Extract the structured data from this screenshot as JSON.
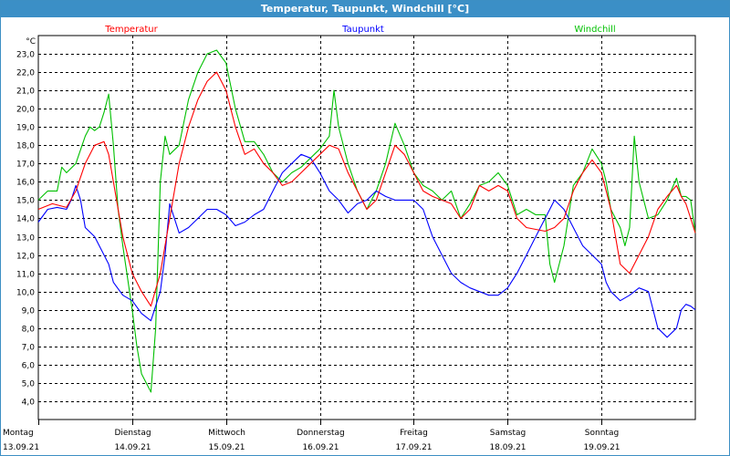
{
  "window": {
    "title": "Temperatur, Taupunkt, Windchill [°C]"
  },
  "chart_data": {
    "type": "line",
    "title": "Temperatur, Taupunkt, Windchill [°C]",
    "ylabel": "°C",
    "ylim": [
      3.0,
      24.0
    ],
    "yticks": [
      "4,0",
      "5,0",
      "6,0",
      "7,0",
      "8,0",
      "9,0",
      "10,0",
      "11,0",
      "12,0",
      "13,0",
      "14,0",
      "15,0",
      "16,0",
      "17,0",
      "18,0",
      "19,0",
      "20,0",
      "21,0",
      "22,0",
      "23,0"
    ],
    "xlim": [
      0,
      7
    ],
    "grid": true,
    "legend_position": "top",
    "days": [
      {
        "x": 0,
        "name": "Montag",
        "date": "13.09.21"
      },
      {
        "x": 1,
        "name": "Dienstag",
        "date": "14.09.21"
      },
      {
        "x": 2,
        "name": "Mittwoch",
        "date": "15.09.21"
      },
      {
        "x": 3,
        "name": "Donnerstag",
        "date": "16.09.21"
      },
      {
        "x": 4,
        "name": "Freitag",
        "date": "17.09.21"
      },
      {
        "x": 5,
        "name": "Samstag",
        "date": "18.09.21"
      },
      {
        "x": 6,
        "name": "Sonntag",
        "date": "19.09.21"
      }
    ],
    "series": [
      {
        "name": "Temperatur",
        "color": "#ff0000",
        "points": [
          [
            0,
            14.5
          ],
          [
            0.15,
            14.8
          ],
          [
            0.3,
            14.6
          ],
          [
            0.4,
            15.5
          ],
          [
            0.5,
            17.0
          ],
          [
            0.6,
            18.0
          ],
          [
            0.7,
            18.2
          ],
          [
            0.75,
            17.5
          ],
          [
            0.8,
            16.0
          ],
          [
            0.9,
            13.0
          ],
          [
            1.0,
            11.0
          ],
          [
            1.1,
            10.0
          ],
          [
            1.2,
            9.2
          ],
          [
            1.3,
            11.0
          ],
          [
            1.4,
            14.0
          ],
          [
            1.5,
            17.0
          ],
          [
            1.6,
            19.0
          ],
          [
            1.7,
            20.5
          ],
          [
            1.8,
            21.5
          ],
          [
            1.9,
            22.0
          ],
          [
            2.0,
            21.0
          ],
          [
            2.1,
            19.0
          ],
          [
            2.2,
            17.5
          ],
          [
            2.3,
            17.8
          ],
          [
            2.4,
            17.0
          ],
          [
            2.5,
            16.5
          ],
          [
            2.6,
            15.8
          ],
          [
            2.7,
            16.0
          ],
          [
            2.8,
            16.5
          ],
          [
            2.9,
            17.0
          ],
          [
            3.0,
            17.5
          ],
          [
            3.1,
            18.0
          ],
          [
            3.2,
            17.8
          ],
          [
            3.3,
            16.5
          ],
          [
            3.4,
            15.5
          ],
          [
            3.5,
            14.5
          ],
          [
            3.6,
            15.0
          ],
          [
            3.7,
            16.5
          ],
          [
            3.8,
            18.0
          ],
          [
            3.9,
            17.5
          ],
          [
            4.0,
            16.5
          ],
          [
            4.1,
            15.5
          ],
          [
            4.2,
            15.2
          ],
          [
            4.3,
            15.0
          ],
          [
            4.4,
            14.8
          ],
          [
            4.5,
            14.0
          ],
          [
            4.6,
            14.5
          ],
          [
            4.7,
            15.8
          ],
          [
            4.8,
            15.5
          ],
          [
            4.9,
            15.8
          ],
          [
            5.0,
            15.5
          ],
          [
            5.1,
            14.0
          ],
          [
            5.2,
            13.5
          ],
          [
            5.3,
            13.4
          ],
          [
            5.4,
            13.3
          ],
          [
            5.5,
            13.5
          ],
          [
            5.6,
            14.0
          ],
          [
            5.7,
            15.5
          ],
          [
            5.8,
            16.5
          ],
          [
            5.9,
            17.2
          ],
          [
            6.0,
            16.5
          ],
          [
            6.05,
            15.5
          ],
          [
            6.1,
            14.5
          ],
          [
            6.2,
            11.5
          ],
          [
            6.3,
            11.0
          ],
          [
            6.4,
            12.0
          ],
          [
            6.5,
            13.0
          ],
          [
            6.6,
            14.5
          ],
          [
            6.7,
            15.2
          ],
          [
            6.8,
            15.8
          ],
          [
            6.85,
            15.2
          ],
          [
            6.9,
            14.8
          ],
          [
            6.95,
            14.0
          ],
          [
            7.0,
            13.2
          ]
        ]
      },
      {
        "name": "Taupunkt",
        "color": "#0000ff",
        "points": [
          [
            0,
            13.8
          ],
          [
            0.1,
            14.5
          ],
          [
            0.2,
            14.6
          ],
          [
            0.3,
            14.5
          ],
          [
            0.35,
            15.0
          ],
          [
            0.4,
            15.8
          ],
          [
            0.45,
            15.0
          ],
          [
            0.5,
            13.5
          ],
          [
            0.6,
            13.0
          ],
          [
            0.7,
            12.0
          ],
          [
            0.75,
            11.5
          ],
          [
            0.8,
            10.5
          ],
          [
            0.9,
            9.8
          ],
          [
            1.0,
            9.5
          ],
          [
            1.1,
            8.8
          ],
          [
            1.2,
            8.4
          ],
          [
            1.3,
            10.0
          ],
          [
            1.35,
            12.0
          ],
          [
            1.4,
            14.8
          ],
          [
            1.5,
            13.2
          ],
          [
            1.6,
            13.5
          ],
          [
            1.7,
            14.0
          ],
          [
            1.8,
            14.5
          ],
          [
            1.9,
            14.5
          ],
          [
            2.0,
            14.2
          ],
          [
            2.1,
            13.6
          ],
          [
            2.2,
            13.8
          ],
          [
            2.3,
            14.2
          ],
          [
            2.4,
            14.5
          ],
          [
            2.5,
            15.5
          ],
          [
            2.6,
            16.5
          ],
          [
            2.7,
            17.0
          ],
          [
            2.8,
            17.5
          ],
          [
            2.9,
            17.3
          ],
          [
            3.0,
            16.5
          ],
          [
            3.1,
            15.5
          ],
          [
            3.2,
            15.0
          ],
          [
            3.3,
            14.3
          ],
          [
            3.4,
            14.8
          ],
          [
            3.5,
            15.0
          ],
          [
            3.6,
            15.5
          ],
          [
            3.7,
            15.2
          ],
          [
            3.8,
            15.0
          ],
          [
            3.9,
            15.0
          ],
          [
            4.0,
            15.0
          ],
          [
            4.1,
            14.5
          ],
          [
            4.2,
            13.0
          ],
          [
            4.3,
            12.0
          ],
          [
            4.4,
            11.0
          ],
          [
            4.5,
            10.5
          ],
          [
            4.6,
            10.2
          ],
          [
            4.7,
            10.0
          ],
          [
            4.8,
            9.8
          ],
          [
            4.9,
            9.8
          ],
          [
            5.0,
            10.2
          ],
          [
            5.1,
            11.0
          ],
          [
            5.2,
            12.0
          ],
          [
            5.3,
            13.0
          ],
          [
            5.4,
            14.0
          ],
          [
            5.5,
            15.0
          ],
          [
            5.6,
            14.5
          ],
          [
            5.7,
            13.5
          ],
          [
            5.8,
            12.5
          ],
          [
            5.9,
            12.0
          ],
          [
            6.0,
            11.5
          ],
          [
            6.05,
            10.5
          ],
          [
            6.1,
            10.0
          ],
          [
            6.2,
            9.5
          ],
          [
            6.3,
            9.8
          ],
          [
            6.4,
            10.2
          ],
          [
            6.5,
            10.0
          ],
          [
            6.6,
            8.0
          ],
          [
            6.7,
            7.5
          ],
          [
            6.8,
            8.0
          ],
          [
            6.85,
            9.0
          ],
          [
            6.9,
            9.3
          ],
          [
            6.95,
            9.2
          ],
          [
            7.0,
            9.0
          ]
        ]
      },
      {
        "name": "Windchill",
        "color": "#00c000",
        "points": [
          [
            0,
            15.0
          ],
          [
            0.1,
            15.5
          ],
          [
            0.2,
            15.5
          ],
          [
            0.25,
            16.8
          ],
          [
            0.3,
            16.5
          ],
          [
            0.4,
            17.0
          ],
          [
            0.5,
            18.5
          ],
          [
            0.55,
            19.0
          ],
          [
            0.6,
            18.8
          ],
          [
            0.65,
            19.0
          ],
          [
            0.7,
            19.8
          ],
          [
            0.75,
            20.8
          ],
          [
            0.8,
            18.0
          ],
          [
            0.85,
            14.5
          ],
          [
            0.9,
            12.5
          ],
          [
            1.0,
            9.0
          ],
          [
            1.05,
            7.0
          ],
          [
            1.1,
            5.5
          ],
          [
            1.2,
            4.5
          ],
          [
            1.25,
            8.0
          ],
          [
            1.3,
            16.0
          ],
          [
            1.35,
            18.5
          ],
          [
            1.4,
            17.5
          ],
          [
            1.5,
            18.0
          ],
          [
            1.6,
            20.5
          ],
          [
            1.7,
            22.0
          ],
          [
            1.8,
            23.0
          ],
          [
            1.9,
            23.2
          ],
          [
            2.0,
            22.5
          ],
          [
            2.1,
            20.0
          ],
          [
            2.2,
            18.2
          ],
          [
            2.3,
            18.2
          ],
          [
            2.4,
            17.5
          ],
          [
            2.5,
            16.5
          ],
          [
            2.6,
            16.0
          ],
          [
            2.7,
            16.5
          ],
          [
            2.8,
            16.8
          ],
          [
            2.9,
            17.3
          ],
          [
            3.0,
            17.8
          ],
          [
            3.1,
            18.5
          ],
          [
            3.15,
            21.0
          ],
          [
            3.2,
            19.0
          ],
          [
            3.3,
            17.0
          ],
          [
            3.4,
            15.5
          ],
          [
            3.5,
            14.5
          ],
          [
            3.6,
            15.5
          ],
          [
            3.7,
            17.0
          ],
          [
            3.8,
            19.2
          ],
          [
            3.9,
            18.0
          ],
          [
            4.0,
            16.5
          ],
          [
            4.1,
            15.8
          ],
          [
            4.2,
            15.5
          ],
          [
            4.3,
            15.0
          ],
          [
            4.4,
            15.5
          ],
          [
            4.5,
            14.0
          ],
          [
            4.6,
            14.8
          ],
          [
            4.7,
            15.8
          ],
          [
            4.8,
            16.0
          ],
          [
            4.9,
            16.5
          ],
          [
            5.0,
            15.8
          ],
          [
            5.1,
            14.2
          ],
          [
            5.2,
            14.5
          ],
          [
            5.3,
            14.2
          ],
          [
            5.4,
            14.2
          ],
          [
            5.45,
            11.5
          ],
          [
            5.5,
            10.5
          ],
          [
            5.6,
            12.5
          ],
          [
            5.7,
            15.8
          ],
          [
            5.8,
            16.5
          ],
          [
            5.9,
            17.8
          ],
          [
            6.0,
            17.0
          ],
          [
            6.05,
            16.0
          ],
          [
            6.1,
            14.5
          ],
          [
            6.2,
            13.5
          ],
          [
            6.25,
            12.5
          ],
          [
            6.3,
            13.5
          ],
          [
            6.35,
            18.5
          ],
          [
            6.4,
            16.0
          ],
          [
            6.5,
            14.0
          ],
          [
            6.6,
            14.2
          ],
          [
            6.7,
            15.0
          ],
          [
            6.8,
            16.2
          ],
          [
            6.85,
            15.2
          ],
          [
            6.9,
            15.2
          ],
          [
            6.95,
            15.0
          ],
          [
            7.0,
            13.2
          ]
        ]
      }
    ]
  }
}
